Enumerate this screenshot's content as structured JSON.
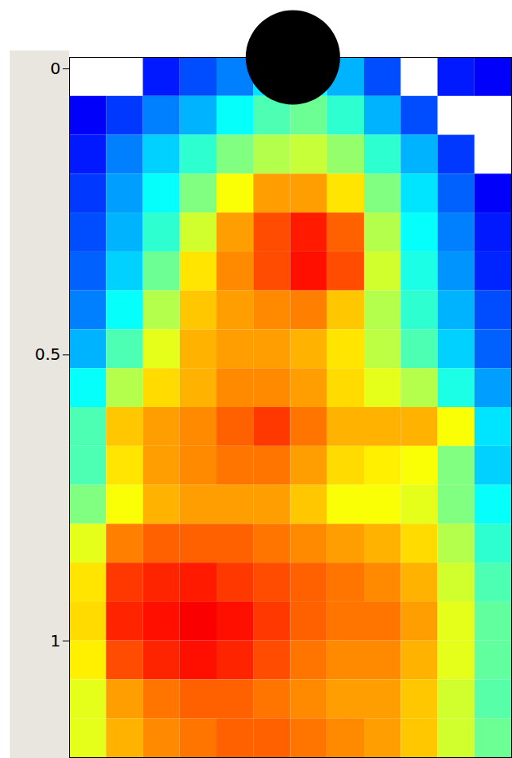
{
  "chart_data": {
    "type": "heatmap",
    "tick_labels": "y",
    "color": "jet",
    "zlim": [
      0,
      1
    ],
    "xlim": [
      0,
      0.768
    ],
    "ylim": [
      -0.02,
      1.204
    ],
    "yticks": [
      0,
      0.5,
      1
    ],
    "x_edges": [
      0,
      0.064,
      0.128,
      0.192,
      0.256,
      0.32,
      0.384,
      0.448,
      0.512,
      0.576,
      0.64,
      0.704,
      0.768
    ],
    "y_edges": [
      -0.02,
      0.048,
      0.116,
      0.184,
      0.252,
      0.32,
      0.388,
      0.456,
      0.524,
      0.592,
      0.66,
      0.728,
      0.796,
      0.864,
      0.932,
      1.0,
      1.068,
      1.136,
      1.204
    ],
    "values": [
      [
        null,
        null,
        0.15,
        0.2,
        0.25,
        0.35,
        0.38,
        0.3,
        0.2,
        null,
        0.15,
        0.12
      ],
      [
        0.12,
        0.18,
        0.25,
        0.3,
        0.38,
        0.45,
        0.48,
        0.42,
        0.3,
        0.2,
        null,
        null
      ],
      [
        0.15,
        0.25,
        0.33,
        0.42,
        0.5,
        0.55,
        0.57,
        0.52,
        0.42,
        0.3,
        0.18,
        null
      ],
      [
        0.18,
        0.28,
        0.38,
        0.5,
        0.62,
        0.72,
        0.72,
        0.65,
        0.5,
        0.35,
        0.22,
        0.12
      ],
      [
        0.2,
        0.3,
        0.42,
        0.58,
        0.72,
        0.8,
        0.85,
        0.78,
        0.55,
        0.38,
        0.25,
        0.15
      ],
      [
        0.22,
        0.33,
        0.48,
        0.65,
        0.74,
        0.8,
        0.86,
        0.8,
        0.58,
        0.4,
        0.27,
        0.16
      ],
      [
        0.25,
        0.38,
        0.55,
        0.68,
        0.72,
        0.74,
        0.75,
        0.68,
        0.55,
        0.42,
        0.3,
        0.2
      ],
      [
        0.3,
        0.45,
        0.6,
        0.7,
        0.72,
        0.72,
        0.7,
        0.65,
        0.56,
        0.45,
        0.33,
        0.22
      ],
      [
        0.38,
        0.55,
        0.66,
        0.7,
        0.74,
        0.74,
        0.72,
        0.66,
        0.6,
        0.55,
        0.4,
        0.28
      ],
      [
        0.45,
        0.68,
        0.72,
        0.74,
        0.78,
        0.82,
        0.76,
        0.7,
        0.7,
        0.7,
        0.62,
        0.35
      ],
      [
        0.45,
        0.65,
        0.72,
        0.74,
        0.76,
        0.76,
        0.72,
        0.66,
        0.64,
        0.62,
        0.5,
        0.33
      ],
      [
        0.5,
        0.62,
        0.7,
        0.72,
        0.72,
        0.72,
        0.68,
        0.62,
        0.62,
        0.6,
        0.5,
        0.38
      ],
      [
        0.6,
        0.75,
        0.78,
        0.78,
        0.78,
        0.76,
        0.74,
        0.72,
        0.7,
        0.66,
        0.55,
        0.42
      ],
      [
        0.65,
        0.82,
        0.84,
        0.85,
        0.82,
        0.8,
        0.78,
        0.76,
        0.74,
        0.7,
        0.58,
        0.45
      ],
      [
        0.66,
        0.84,
        0.86,
        0.88,
        0.86,
        0.82,
        0.78,
        0.76,
        0.76,
        0.72,
        0.6,
        0.47
      ],
      [
        0.64,
        0.8,
        0.84,
        0.86,
        0.84,
        0.8,
        0.76,
        0.74,
        0.74,
        0.7,
        0.6,
        0.47
      ],
      [
        0.6,
        0.72,
        0.76,
        0.78,
        0.78,
        0.76,
        0.74,
        0.72,
        0.72,
        0.68,
        0.58,
        0.46
      ],
      [
        0.6,
        0.7,
        0.74,
        0.76,
        0.78,
        0.78,
        0.76,
        0.74,
        0.72,
        0.68,
        0.58,
        0.48
      ]
    ],
    "source": {
      "x": 0.388,
      "y": -0.02
    }
  }
}
